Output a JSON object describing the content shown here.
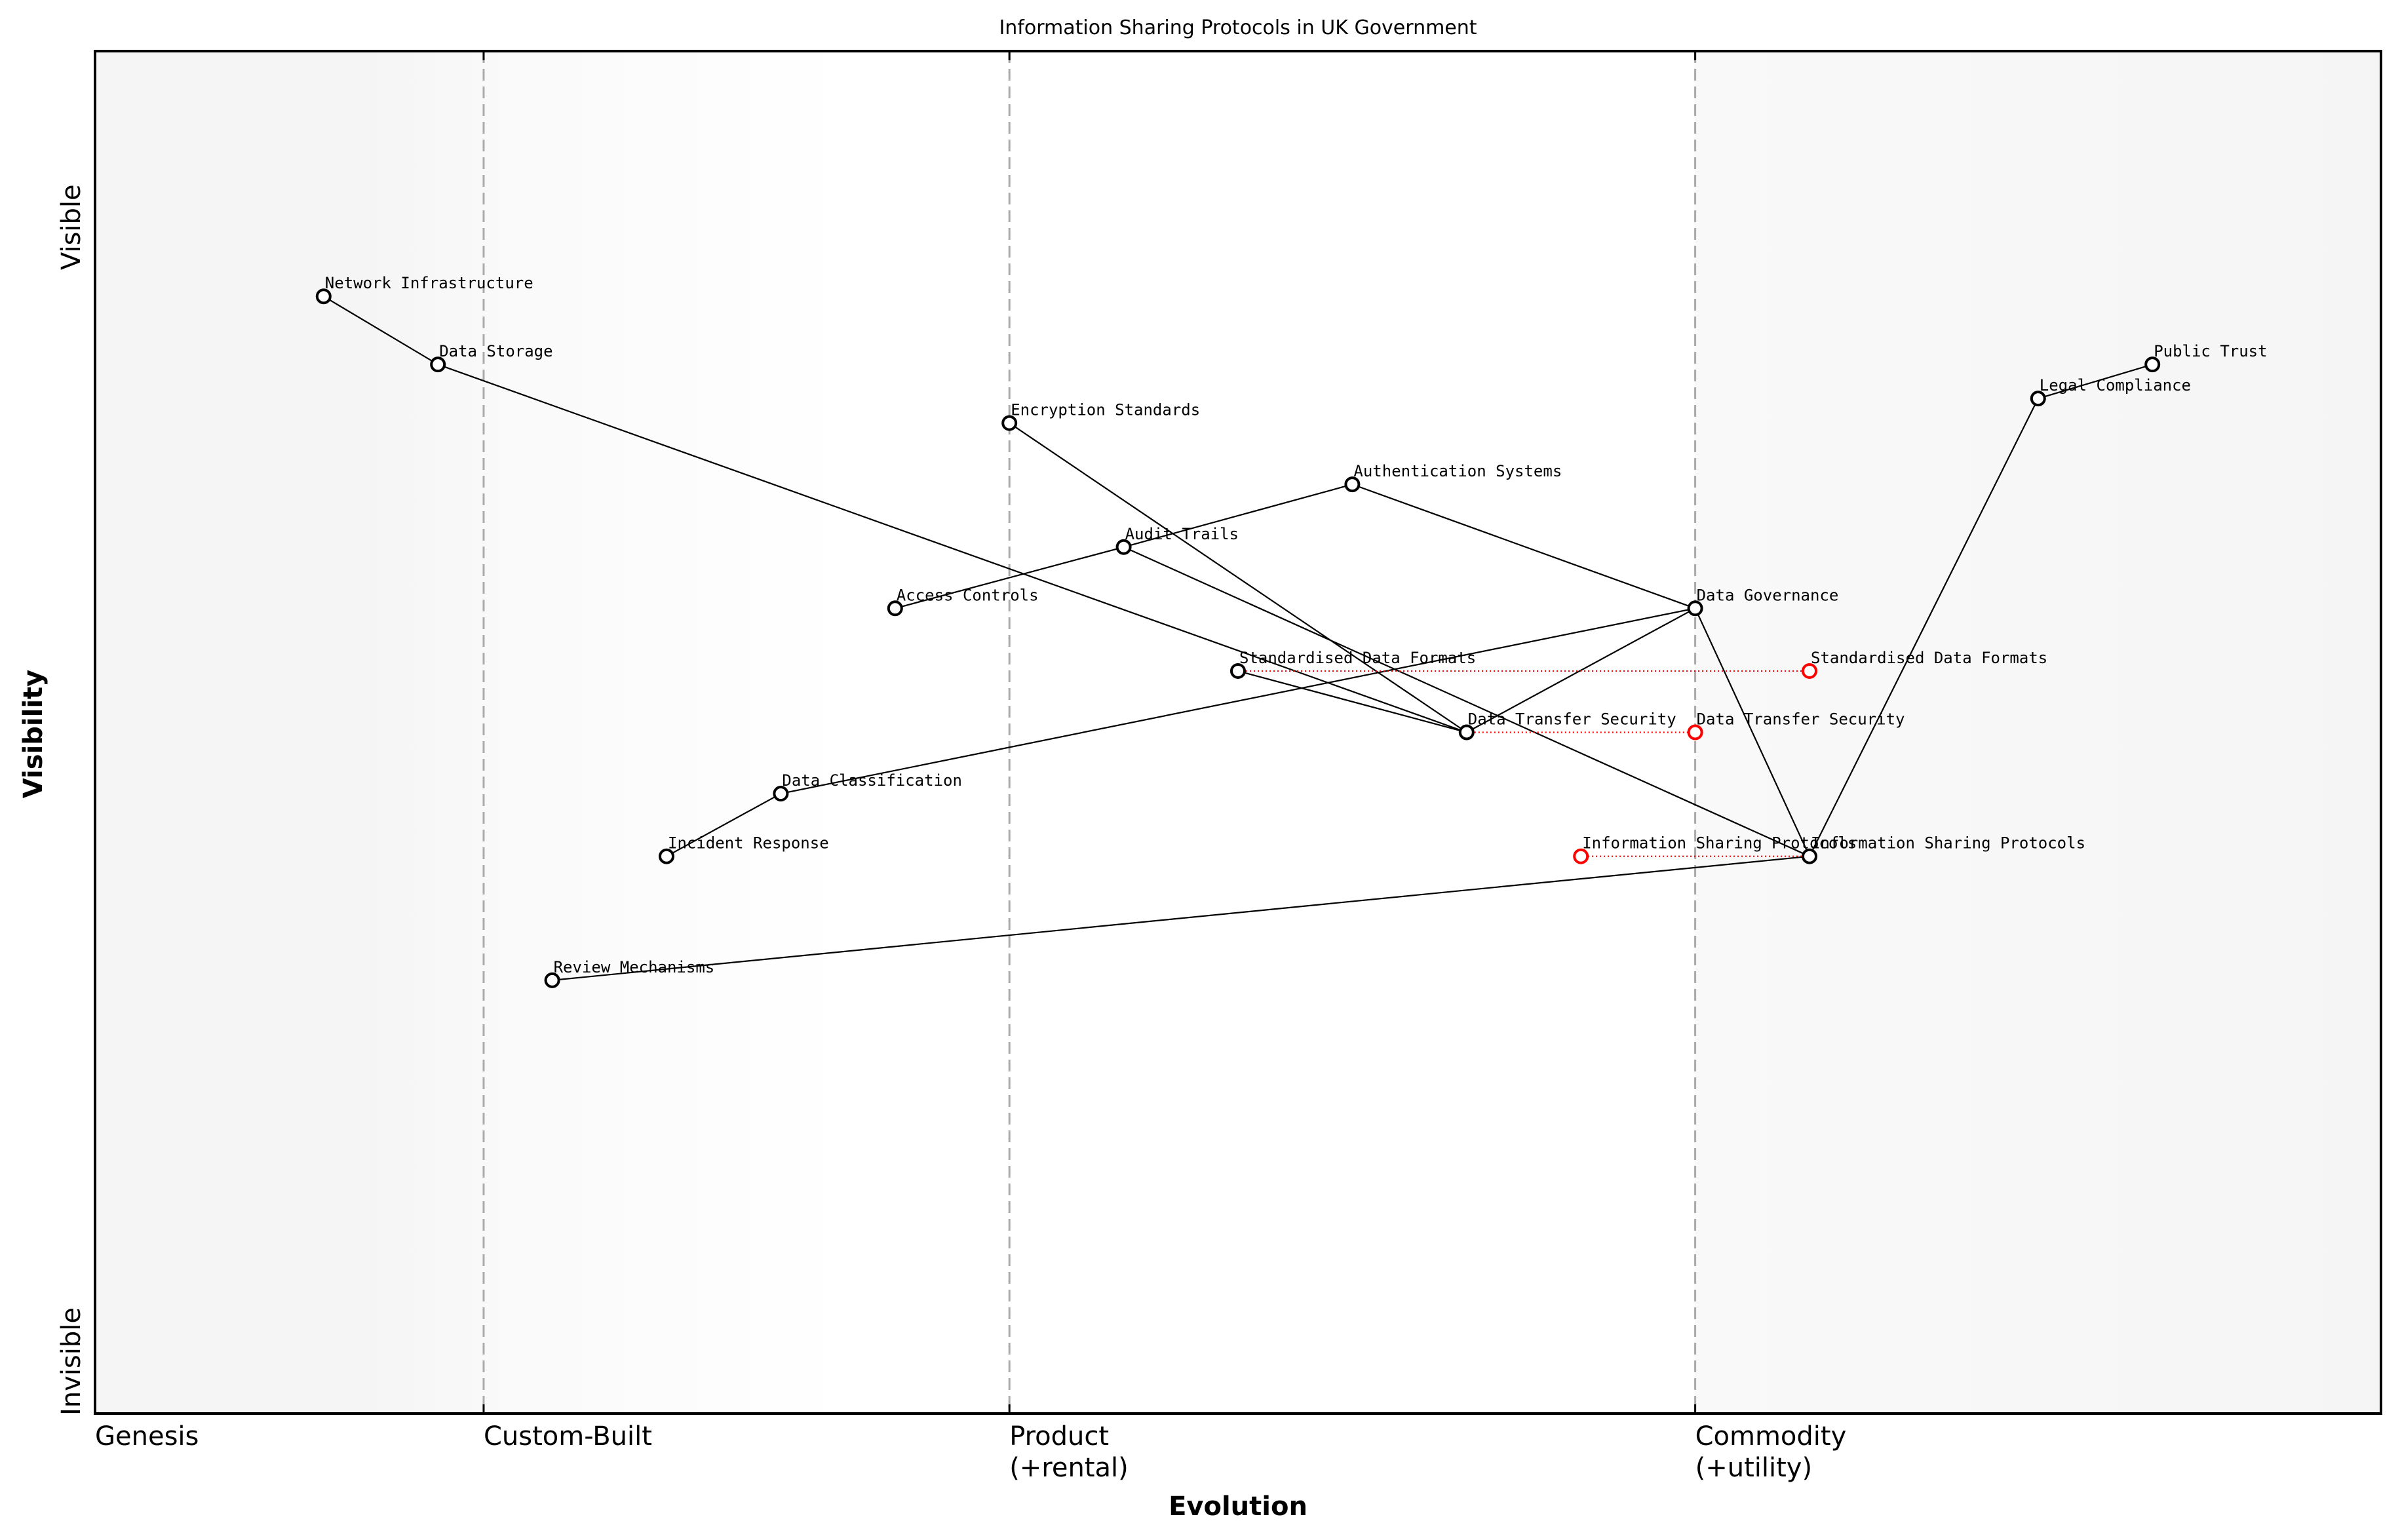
{
  "title": "Information Sharing Protocols in UK Government",
  "axes": {
    "x_title": "Evolution",
    "y_title": "Visibility",
    "y_top_label": "Visible",
    "y_bottom_label": "Invisible",
    "stages": [
      {
        "label": [
          "Genesis"
        ],
        "x": 0.0,
        "line": false
      },
      {
        "label": [
          "Custom-Built"
        ],
        "x": 0.17,
        "line": true
      },
      {
        "label": [
          "Product",
          "(+rental)"
        ],
        "x": 0.4,
        "line": true
      },
      {
        "label": [
          "Commodity",
          "(+utility)"
        ],
        "x": 0.7,
        "line": true
      }
    ]
  },
  "colors": {
    "evolve": "#ff0000",
    "stage_line": "#aaaaaa",
    "node": "#000000",
    "bg_genesis": "#f5f5f5",
    "bg_product": "#ffffff",
    "bg_commodity": "#f8f8f8"
  },
  "chart_data": {
    "type": "wardley-map",
    "title": "Information Sharing Protocols in UK Government",
    "xlabel": "Evolution",
    "ylabel": "Visibility",
    "xlim": [
      0,
      1
    ],
    "ylim": [
      0,
      1
    ],
    "components": [
      {
        "id": "public-trust",
        "name": "Public Trust",
        "evolution": 0.9,
        "visibility": 0.77
      },
      {
        "id": "legal-compliance",
        "name": "Legal Compliance",
        "evolution": 0.85,
        "visibility": 0.745
      },
      {
        "id": "network-infrastructure",
        "name": "Network Infrastructure",
        "evolution": 0.1,
        "visibility": 0.82
      },
      {
        "id": "data-storage",
        "name": "Data Storage",
        "evolution": 0.15,
        "visibility": 0.77
      },
      {
        "id": "encryption-standards",
        "name": "Encryption Standards",
        "evolution": 0.4,
        "visibility": 0.727
      },
      {
        "id": "authentication-systems",
        "name": "Authentication Systems",
        "evolution": 0.55,
        "visibility": 0.682
      },
      {
        "id": "audit-trails",
        "name": "Audit Trails",
        "evolution": 0.45,
        "visibility": 0.636
      },
      {
        "id": "access-controls",
        "name": "Access Controls",
        "evolution": 0.35,
        "visibility": 0.591
      },
      {
        "id": "data-governance",
        "name": "Data Governance",
        "evolution": 0.7,
        "visibility": 0.591
      },
      {
        "id": "standardised-data-formats",
        "name": "Standardised Data Formats",
        "evolution": 0.5,
        "visibility": 0.545
      },
      {
        "id": "data-transfer-security",
        "name": "Data Transfer Security",
        "evolution": 0.6,
        "visibility": 0.5
      },
      {
        "id": "data-classification",
        "name": "Data Classification",
        "evolution": 0.3,
        "visibility": 0.455
      },
      {
        "id": "incident-response",
        "name": "Incident Response",
        "evolution": 0.25,
        "visibility": 0.409
      },
      {
        "id": "information-sharing-protocols",
        "name": "Information Sharing Protocols",
        "evolution": 0.75,
        "visibility": 0.409
      },
      {
        "id": "review-mechanisms",
        "name": "Review Mechanisms",
        "evolution": 0.2,
        "visibility": 0.318
      }
    ],
    "links": [
      [
        "public-trust",
        "legal-compliance"
      ],
      [
        "legal-compliance",
        "information-sharing-protocols"
      ],
      [
        "network-infrastructure",
        "data-storage"
      ],
      [
        "data-storage",
        "data-transfer-security"
      ],
      [
        "encryption-standards",
        "data-transfer-security"
      ],
      [
        "standardised-data-formats",
        "data-transfer-security"
      ],
      [
        "data-governance",
        "data-transfer-security"
      ],
      [
        "access-controls",
        "audit-trails"
      ],
      [
        "audit-trails",
        "authentication-systems"
      ],
      [
        "authentication-systems",
        "data-governance"
      ],
      [
        "audit-trails",
        "information-sharing-protocols"
      ],
      [
        "data-governance",
        "information-sharing-protocols"
      ],
      [
        "data-classification",
        "data-governance"
      ],
      [
        "incident-response",
        "data-classification"
      ],
      [
        "review-mechanisms",
        "information-sharing-protocols"
      ]
    ],
    "evolutions": [
      {
        "id": "standardised-data-formats",
        "name": "Standardised Data Formats",
        "from": 0.5,
        "to": 0.75,
        "visibility": 0.545
      },
      {
        "id": "data-transfer-security",
        "name": "Data Transfer Security",
        "from": 0.6,
        "to": 0.7,
        "visibility": 0.5
      },
      {
        "id": "information-sharing-protocols",
        "name": "Information Sharing Protocols",
        "from": 0.75,
        "to": 0.65,
        "visibility": 0.409
      }
    ]
  }
}
